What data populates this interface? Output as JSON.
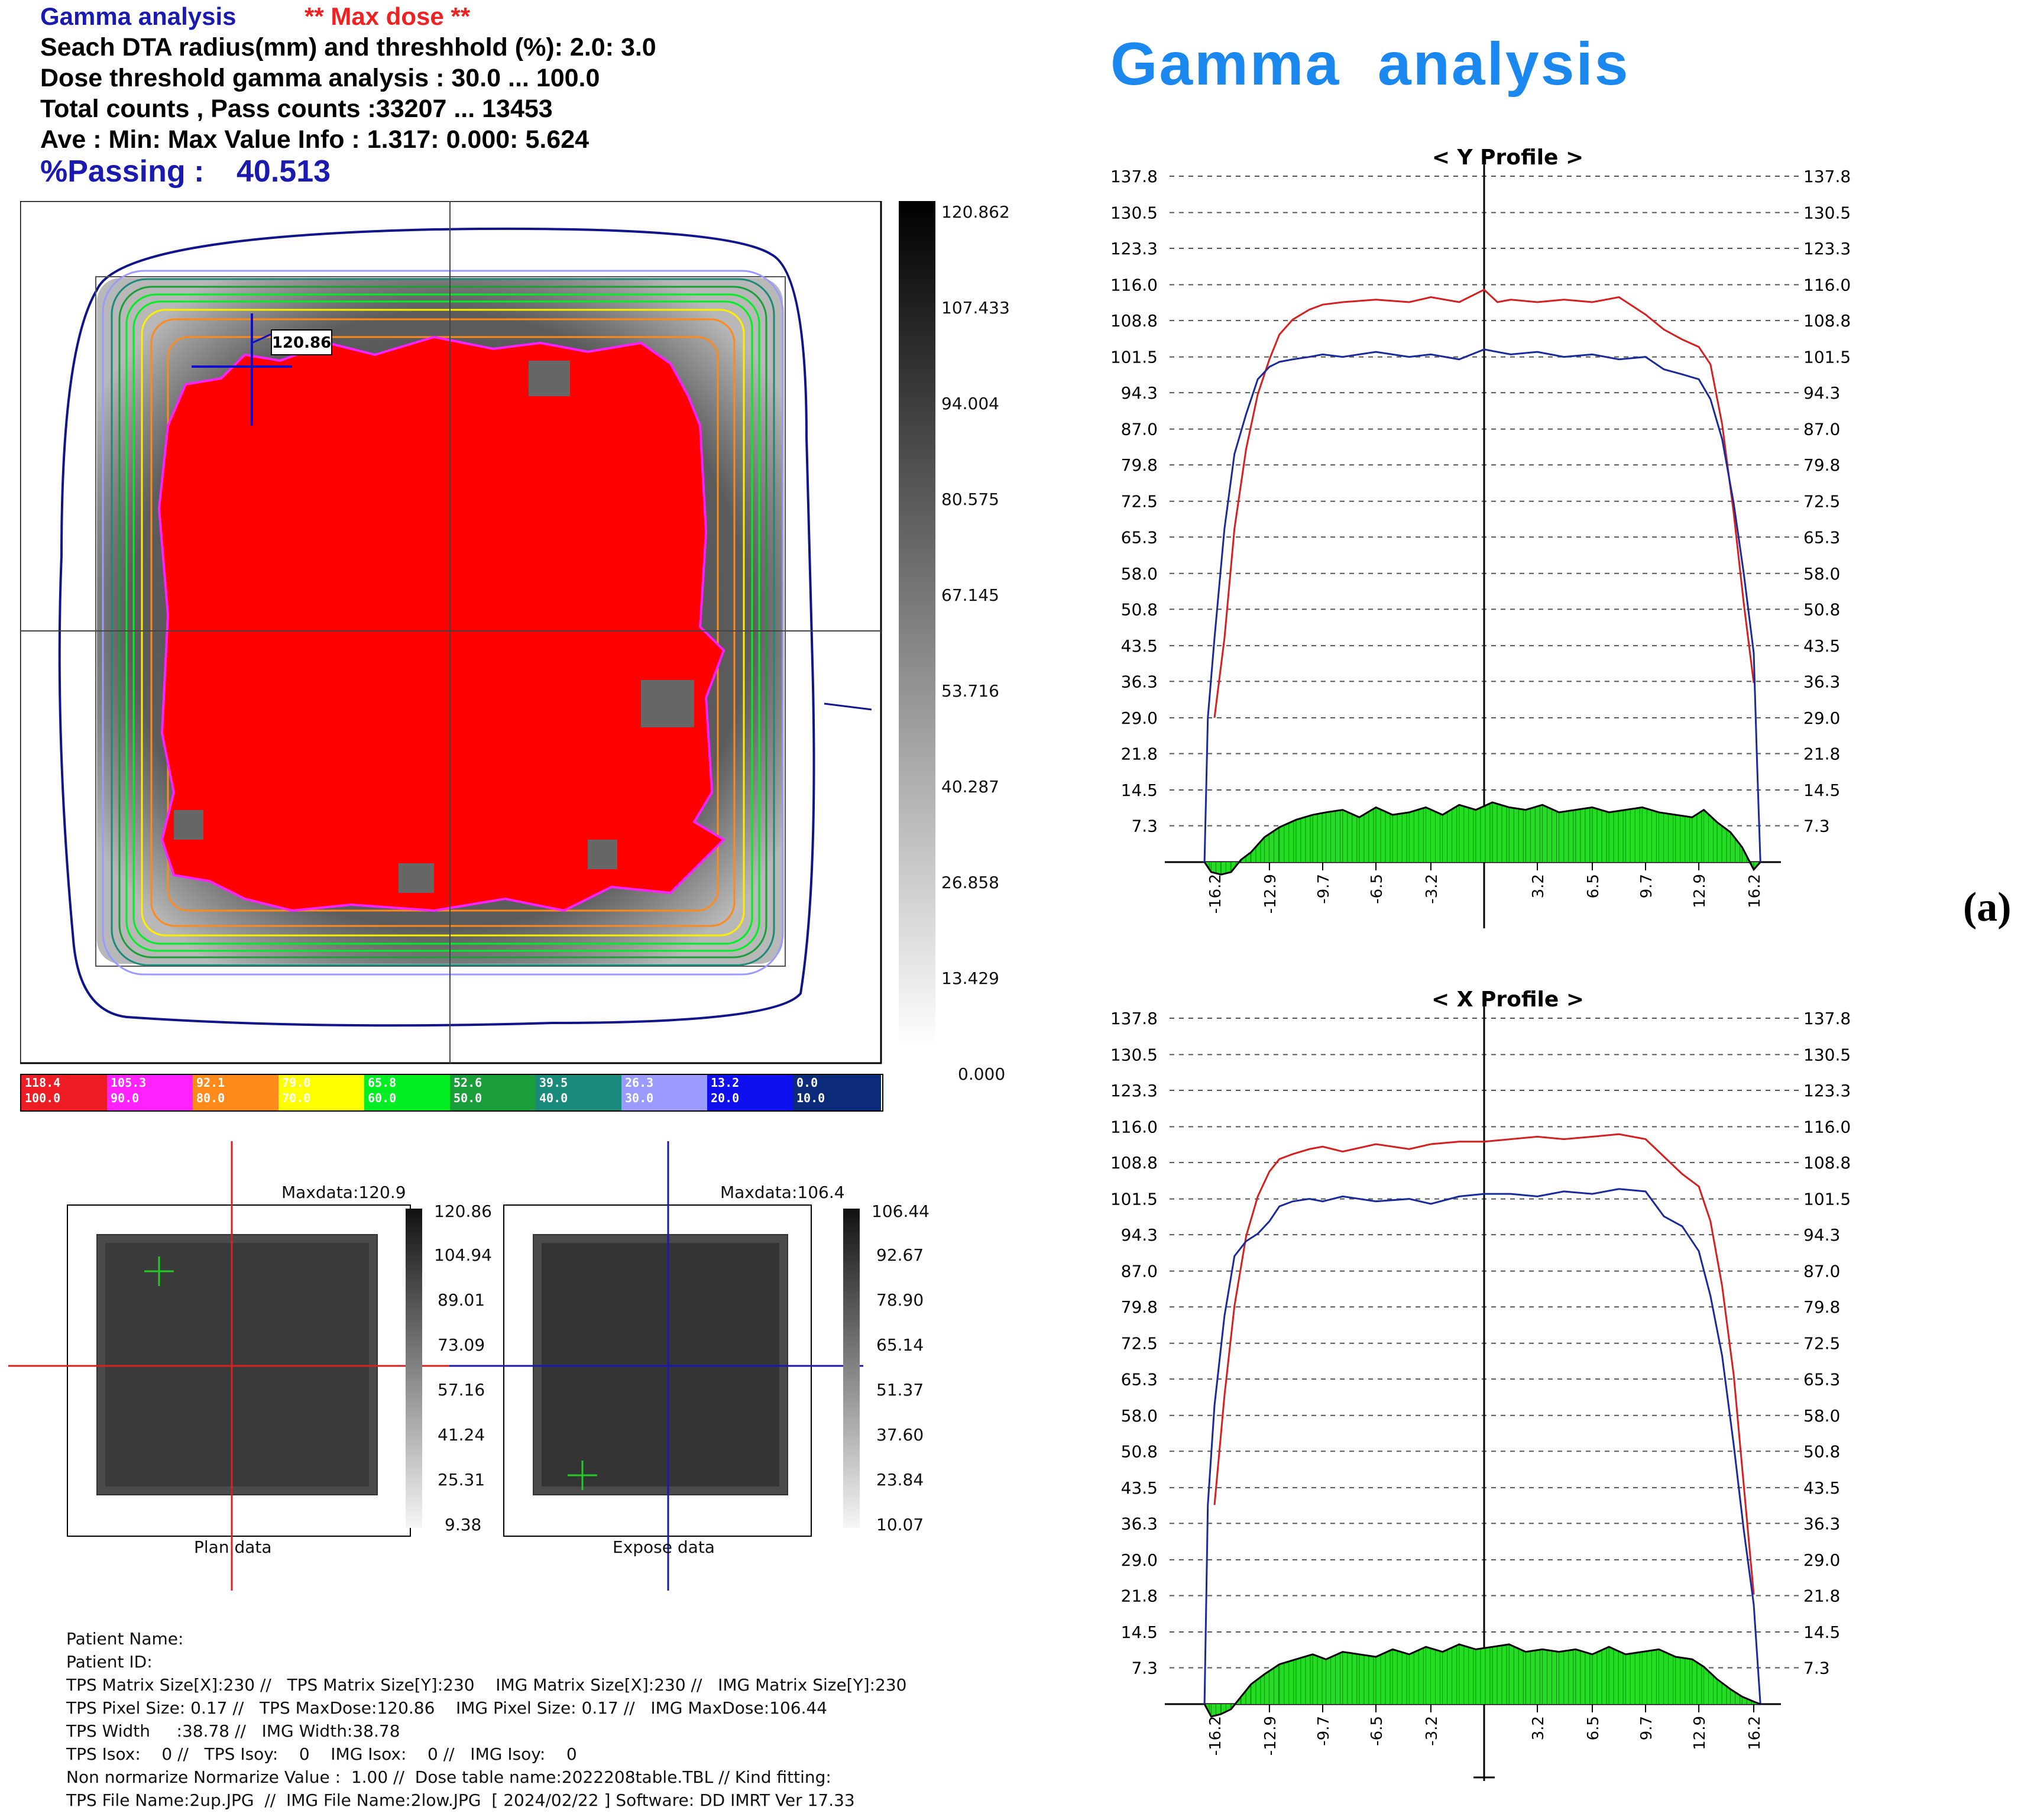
{
  "header": {
    "title": "Gamma analysis",
    "max_dose": "** Max dose **",
    "line1": "Seach DTA radius(mm) and threshhold (%): 2.0: 3.0",
    "line2": "Dose threshold gamma analysis : 30.0 ...  100.0",
    "line3": "Total counts , Pass counts :33207 ...  13453",
    "line4": "Ave : Min: Max Value Info : 1.317: 0.000: 5.624",
    "passing_label": "%Passing :",
    "passing_value": "40.513"
  },
  "right_title": "Gamma  analysis",
  "figure_label": "(a)",
  "gamma_map": {
    "marker_value": "120.86",
    "scale_ticks": [
      "120.862",
      "107.433",
      "94.004",
      "80.575",
      "67.145",
      "53.716",
      "40.287",
      "26.858",
      "13.429",
      "0.000"
    ]
  },
  "legend": [
    {
      "top": "118.4",
      "bottom": "100.0",
      "color": "#ee1c24"
    },
    {
      "top": "105.3",
      "bottom": "90.0",
      "color": "#ff22ff"
    },
    {
      "top": "92.1",
      "bottom": "80.0",
      "color": "#ff8a1c"
    },
    {
      "top": "79.0",
      "bottom": "70.0",
      "color": "#ffff00"
    },
    {
      "top": "65.8",
      "bottom": "60.0",
      "color": "#00ee22"
    },
    {
      "top": "52.6",
      "bottom": "50.0",
      "color": "#1a9e3a"
    },
    {
      "top": "39.5",
      "bottom": "40.0",
      "color": "#1a8a7a"
    },
    {
      "top": "26.3",
      "bottom": "30.0",
      "color": "#9a9aff"
    },
    {
      "top": "13.2",
      "bottom": "20.0",
      "color": "#1010ee"
    },
    {
      "top": "0.0",
      "bottom": "10.0",
      "color": "#0c2a7a"
    }
  ],
  "plan_panel": {
    "maxdata": "Maxdata:120.9",
    "caption": "Plan data",
    "scale": [
      "120.86",
      "104.94",
      "89.01",
      "73.09",
      "57.16",
      "41.24",
      "25.31",
      "9.38"
    ]
  },
  "expose_panel": {
    "maxdata": "Maxdata:106.4",
    "caption": "Expose data",
    "scale": [
      "106.44",
      "92.67",
      "78.90",
      "65.14",
      "51.37",
      "37.60",
      "23.84",
      "10.07"
    ]
  },
  "info": {
    "lines": [
      "Patient Name:",
      "Patient ID:",
      "TPS Matrix Size[X]:230 //   TPS Matrix Size[Y]:230    IMG Matrix Size[X]:230 //   IMG Matrix Size[Y]:230",
      "TPS Pixel Size: 0.17 //   TPS MaxDose:120.86    IMG Pixel Size: 0.17 //   IMG MaxDose:106.44",
      "TPS Width     :38.78 //   IMG Width:38.78",
      "TPS Isox:    0 //   TPS Isoy:    0    IMG Isox:    0 //   IMG Isoy:    0",
      "Non normarize Normarize Value :  1.00 //  Dose table name:2022208table.TBL // Kind fitting:",
      "TPS File Name:2up.JPG  //  IMG File Name:2low.JPG  [ 2024/02/22 ] Software: DD IMRT Ver 17.33"
    ]
  },
  "chart_data": [
    {
      "type": "line",
      "title": "< Y Profile >",
      "x_ticks": [
        "-16.2",
        "-12.9",
        "-9.7",
        "-6.5",
        "-3.2",
        "3.2",
        "6.5",
        "9.7",
        "12.9",
        "16.2"
      ],
      "y_ticks": [
        "137.8",
        "130.5",
        "123.3",
        "116.0",
        "108.8",
        "101.5",
        "94.3",
        "87.0",
        "79.8",
        "72.5",
        "65.3",
        "58.0",
        "50.8",
        "43.5",
        "36.3",
        "29.0",
        "21.8",
        "14.5",
        "7.3"
      ],
      "ylim": [
        0,
        137.8
      ],
      "xlim": [
        -18.9,
        18.9
      ],
      "grid": true,
      "series": [
        {
          "color": "#d42020",
          "x": [
            -16.2,
            -15.6,
            -15.0,
            -14.3,
            -13.6,
            -12.9,
            -12.3,
            -11.5,
            -10.5,
            -9.7,
            -8.5,
            -6.5,
            -4.5,
            -3.2,
            -1.5,
            0,
            0.8,
            1.6,
            3.2,
            4.8,
            6.5,
            8.1,
            9.7,
            10.8,
            11.9,
            12.9,
            13.6,
            14.3,
            15.0,
            15.6,
            16.2
          ],
          "y": [
            29.0,
            45.0,
            67.0,
            83.0,
            94.0,
            101.0,
            106.0,
            109.0,
            111.0,
            112.0,
            112.5,
            113.0,
            112.5,
            113.5,
            112.5,
            115.0,
            112.5,
            113.0,
            112.5,
            113.0,
            112.5,
            113.5,
            110.0,
            107.0,
            105.0,
            103.5,
            100.0,
            88.0,
            70.0,
            52.0,
            36.0
          ]
        },
        {
          "color": "#1a2a9a",
          "x": [
            -16.8,
            -16.6,
            -16.2,
            -15.6,
            -15.0,
            -14.3,
            -13.6,
            -12.9,
            -12.3,
            -11.5,
            -10.5,
            -9.7,
            -8.5,
            -6.5,
            -4.5,
            -3.2,
            -1.5,
            0,
            1.6,
            3.2,
            4.8,
            6.5,
            8.1,
            9.7,
            10.8,
            11.9,
            12.9,
            13.6,
            14.3,
            15.0,
            15.6,
            16.2,
            16.4,
            16.6
          ],
          "y": [
            0,
            29.0,
            45.0,
            67.0,
            82.0,
            90.0,
            97.0,
            99.5,
            100.5,
            101.0,
            101.5,
            102.0,
            101.5,
            102.5,
            101.5,
            102.0,
            101.0,
            103.0,
            102.0,
            102.5,
            101.5,
            102.0,
            101.0,
            101.5,
            99.0,
            98.0,
            97.0,
            93.0,
            85.0,
            72.0,
            58.0,
            42.0,
            20.0,
            0
          ]
        },
        {
          "color": "#000000",
          "fill": "#22dd22",
          "x": [
            -16.8,
            -16.4,
            -15.8,
            -15.2,
            -14.6,
            -14.0,
            -13.2,
            -12.3,
            -11.3,
            -10.3,
            -9.5,
            -8.5,
            -7.5,
            -6.5,
            -5.5,
            -4.5,
            -3.5,
            -2.5,
            -1.5,
            -0.5,
            0.5,
            1.5,
            2.5,
            3.5,
            4.5,
            5.5,
            6.5,
            7.5,
            8.5,
            9.5,
            10.5,
            11.5,
            12.5,
            13.2,
            14.0,
            14.8,
            15.5,
            16.2,
            16.6
          ],
          "y": [
            0,
            -2.0,
            -2.5,
            -2.0,
            0.5,
            2.0,
            5.0,
            7.0,
            8.5,
            9.5,
            10.0,
            10.5,
            9.0,
            11.0,
            9.5,
            10.0,
            11.0,
            9.5,
            11.5,
            10.5,
            12.0,
            11.0,
            10.5,
            11.5,
            10.0,
            10.5,
            11.0,
            10.0,
            10.5,
            11.0,
            10.0,
            9.5,
            9.0,
            10.5,
            8.0,
            6.0,
            3.0,
            -1.5,
            0
          ]
        }
      ]
    },
    {
      "type": "line",
      "title": "< X Profile >",
      "x_ticks": [
        "-16.2",
        "-12.9",
        "-9.7",
        "-6.5",
        "-3.2",
        "3.2",
        "6.5",
        "9.7",
        "12.9",
        "16.2"
      ],
      "y_ticks": [
        "137.8",
        "130.5",
        "123.3",
        "116.0",
        "108.8",
        "101.5",
        "94.3",
        "87.0",
        "79.8",
        "72.5",
        "65.3",
        "58.0",
        "50.8",
        "43.5",
        "36.3",
        "29.0",
        "21.8",
        "14.5",
        "7.3"
      ],
      "ylim": [
        0,
        137.8
      ],
      "xlim": [
        -18.9,
        18.9
      ],
      "grid": true,
      "series": [
        {
          "color": "#d42020",
          "x": [
            -16.2,
            -15.6,
            -15.0,
            -14.3,
            -13.6,
            -12.9,
            -12.3,
            -11.5,
            -10.5,
            -9.7,
            -8.5,
            -6.5,
            -4.5,
            -3.2,
            -1.5,
            0,
            1.6,
            3.2,
            4.8,
            6.5,
            8.1,
            9.7,
            10.8,
            11.9,
            12.9,
            13.6,
            14.3,
            15.0,
            15.6,
            16.2
          ],
          "y": [
            40.0,
            62.0,
            80.0,
            94.0,
            102.0,
            107.0,
            109.5,
            110.5,
            111.5,
            112.0,
            111.0,
            112.5,
            111.5,
            112.5,
            113.0,
            113.0,
            113.5,
            114.0,
            113.5,
            114.0,
            114.5,
            113.5,
            110.0,
            106.5,
            104.0,
            97.0,
            84.0,
            66.0,
            44.0,
            22.0
          ]
        },
        {
          "color": "#1a2a9a",
          "x": [
            -16.8,
            -16.6,
            -16.2,
            -15.6,
            -15.0,
            -14.3,
            -13.6,
            -12.9,
            -12.3,
            -11.5,
            -10.5,
            -9.7,
            -8.5,
            -6.5,
            -4.5,
            -3.2,
            -1.5,
            0,
            1.6,
            3.2,
            4.8,
            6.5,
            8.1,
            9.7,
            10.8,
            11.9,
            12.9,
            13.6,
            14.3,
            15.0,
            15.6,
            16.2,
            16.4,
            16.6
          ],
          "y": [
            0,
            40.0,
            60.0,
            78.0,
            90.0,
            93.0,
            94.5,
            97.0,
            100.0,
            101.0,
            101.5,
            101.0,
            102.0,
            101.0,
            101.5,
            100.5,
            102.0,
            102.5,
            102.5,
            102.0,
            103.0,
            102.5,
            103.5,
            103.0,
            98.0,
            96.0,
            91.0,
            82.0,
            70.0,
            52.0,
            35.0,
            20.0,
            10.0,
            0
          ]
        },
        {
          "color": "#000000",
          "fill": "#22dd22",
          "x": [
            -16.8,
            -16.4,
            -15.8,
            -15.2,
            -14.6,
            -14.0,
            -13.2,
            -12.3,
            -11.3,
            -10.3,
            -9.5,
            -8.5,
            -7.5,
            -6.5,
            -5.5,
            -4.5,
            -3.5,
            -2.5,
            -1.5,
            -0.5,
            0.5,
            1.5,
            2.5,
            3.5,
            4.5,
            5.5,
            6.5,
            7.5,
            8.5,
            9.5,
            10.5,
            11.5,
            12.5,
            13.2,
            14.0,
            14.8,
            15.5,
            16.2,
            16.6
          ],
          "y": [
            0,
            -2.5,
            -2.0,
            -1.0,
            1.5,
            4.0,
            6.0,
            8.0,
            9.0,
            10.0,
            9.0,
            10.5,
            10.0,
            9.5,
            11.0,
            10.0,
            11.5,
            10.5,
            12.0,
            11.0,
            11.5,
            12.0,
            10.5,
            11.0,
            10.5,
            11.0,
            10.0,
            11.5,
            10.0,
            10.5,
            11.0,
            9.5,
            9.0,
            7.5,
            5.0,
            3.0,
            1.5,
            0.5,
            0
          ]
        }
      ]
    }
  ]
}
